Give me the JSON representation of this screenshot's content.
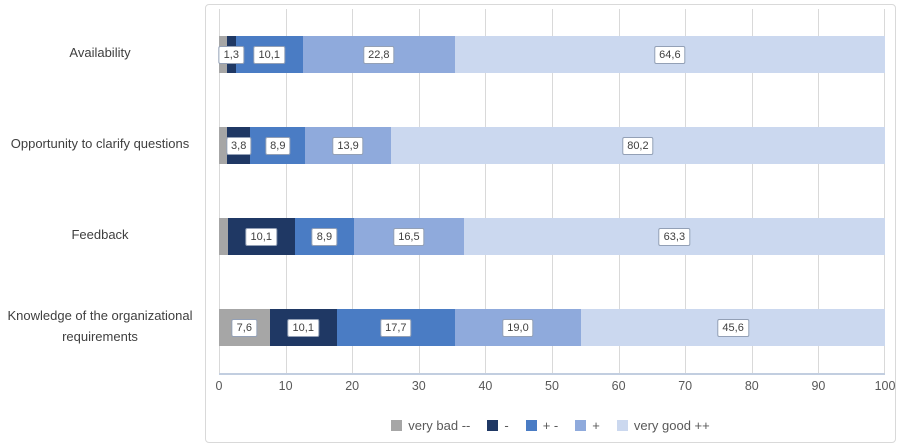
{
  "chart_data": {
    "type": "bar",
    "orientation": "horizontal-stacked",
    "title": "",
    "xlabel": "",
    "ylabel": "",
    "categories": [
      "Availability",
      "Opportunity to clarify questions",
      "Feedback",
      "Knowledge of the organizational requirements"
    ],
    "series": [
      {
        "name": "very bad --",
        "color": "#A6A6A6",
        "values": [
          1.2,
          1.3,
          1.3,
          7.6
        ],
        "labels": [
          "",
          "",
          "",
          "7,6"
        ]
      },
      {
        "name": "-",
        "color": "#1F3864",
        "values": [
          1.3,
          3.8,
          10.1,
          10.1
        ],
        "labels": [
          "1,3",
          "3,8",
          "10,1",
          "10,1"
        ]
      },
      {
        "name": "+ -",
        "color": "#4A7CC4",
        "values": [
          10.1,
          8.9,
          8.9,
          17.7
        ],
        "labels": [
          "10,1",
          "8,9",
          "8,9",
          "17,7"
        ]
      },
      {
        "name": "+",
        "color": "#8FAADC",
        "values": [
          22.8,
          13.9,
          16.5,
          19.0
        ],
        "labels": [
          "22,8",
          "13,9",
          "16,5",
          "19,0"
        ]
      },
      {
        "name": "very good ++",
        "color": "#CBD8EF",
        "values": [
          64.6,
          80.2,
          63.3,
          45.6
        ],
        "labels": [
          "64,6",
          "80,2",
          "63,3",
          "45,6"
        ]
      }
    ],
    "xlim": [
      0,
      100
    ],
    "xticks": [
      0,
      10,
      20,
      30,
      40,
      50,
      60,
      70,
      80,
      90,
      100
    ],
    "grid": "vertical",
    "legend_position": "bottom",
    "colors": {
      "gridline": "#D9D9D9",
      "panel_border": "#D9D9D9",
      "axis_line": "#C2CEE0",
      "value_box_border": "#93A0B6",
      "value_text": "#404040",
      "tick_text": "#595959",
      "legend_text": "#595959",
      "category_text": "#3F3F3F"
    }
  }
}
